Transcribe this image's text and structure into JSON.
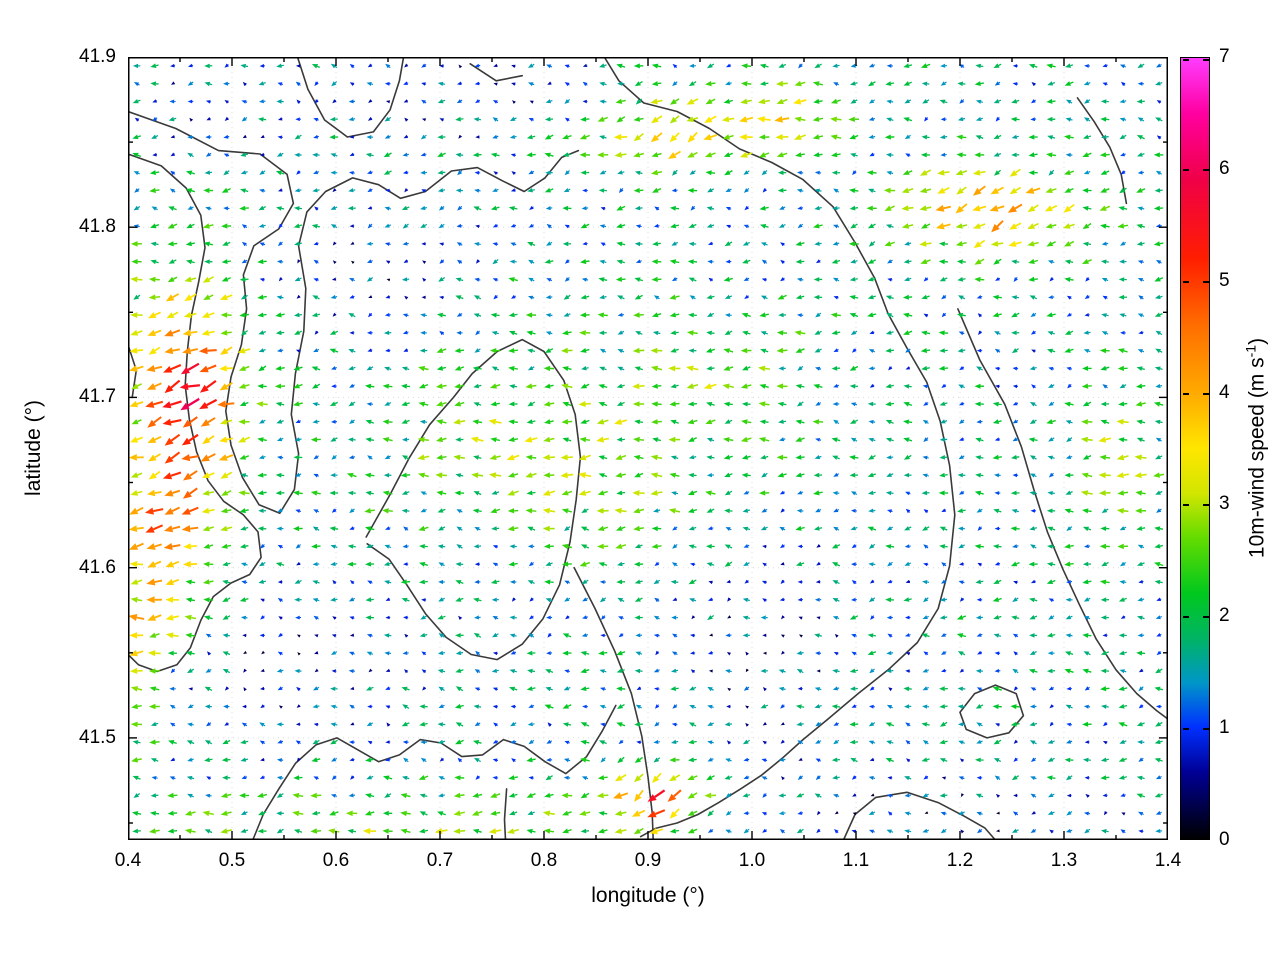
{
  "chart_data": {
    "type": "quiver",
    "title": "",
    "xlabel": "longitude (°)",
    "ylabel": "latitude (°)",
    "xlim": [
      0.4,
      1.4
    ],
    "ylim": [
      41.44,
      41.9
    ],
    "x_ticks": {
      "values": [
        0.4,
        0.5,
        0.6,
        0.7,
        0.8,
        0.9,
        1.0,
        1.1,
        1.2,
        1.3,
        1.4
      ],
      "labels": [
        "0.4",
        "0.5",
        "0.6",
        "0.7",
        "0.8",
        "0.9",
        "1.0",
        "1.1",
        "1.2",
        "1.3",
        "1.4"
      ]
    },
    "y_ticks": {
      "values": [
        41.5,
        41.6,
        41.7,
        41.8,
        41.9
      ],
      "labels": [
        "41.5",
        "41.6",
        "41.7",
        "41.8",
        "41.9"
      ]
    },
    "grid": {
      "show": true,
      "style": "dotted",
      "color": "#dcdcdc"
    },
    "colorbar": {
      "label_prefix": "10m-wind speed (m s",
      "label_sup": "-1",
      "label_suffix": ")",
      "min": 0,
      "max": 7,
      "tick_values": [
        0,
        1,
        2,
        3,
        4,
        5,
        6,
        7
      ],
      "tick_labels": [
        "0",
        "1",
        "2",
        "3",
        "4",
        "5",
        "6",
        "7"
      ],
      "stops": [
        [
          0.0,
          "#000000"
        ],
        [
          0.6,
          "#000096"
        ],
        [
          1.0,
          "#0030ff"
        ],
        [
          1.4,
          "#0096c8"
        ],
        [
          1.8,
          "#00b464"
        ],
        [
          2.2,
          "#00c81e"
        ],
        [
          2.7,
          "#64dc00"
        ],
        [
          3.1,
          "#d2e600"
        ],
        [
          3.5,
          "#ffe600"
        ],
        [
          4.0,
          "#ffaa00"
        ],
        [
          4.6,
          "#ff6e00"
        ],
        [
          5.2,
          "#ff1e00"
        ],
        [
          5.9,
          "#f00046"
        ],
        [
          6.5,
          "#ff00a0"
        ],
        [
          7.0,
          "#ff3cff"
        ]
      ]
    },
    "vector_field": {
      "nx": 58,
      "ny": 44,
      "seed": 42,
      "base_speed": 1.5,
      "speed_noise": 0.75,
      "base_direction_deg": 183,
      "direction_noise_deg": 18,
      "low_speed_extra_noise_deg": 50,
      "speed_blobs": [
        {
          "c": [
            0.455,
            41.7
          ],
          "s": [
            0.055,
            0.075
          ],
          "a": 3.8
        },
        {
          "c": [
            0.42,
            41.615
          ],
          "s": [
            0.05,
            0.03
          ],
          "a": 2.4
        },
        {
          "c": [
            0.425,
            41.57
          ],
          "s": [
            0.055,
            0.025
          ],
          "a": 1.5
        },
        {
          "c": [
            0.402,
            41.53
          ],
          "s": [
            0.03,
            0.04
          ],
          "a": 1.4
        },
        {
          "c": [
            1.23,
            41.81
          ],
          "s": [
            0.1,
            0.026
          ],
          "a": 2.5
        },
        {
          "c": [
            0.93,
            41.855
          ],
          "s": [
            0.07,
            0.022
          ],
          "a": 2.2
        },
        {
          "c": [
            0.8,
            41.665
          ],
          "s": [
            0.16,
            0.07
          ],
          "a": 1.3
        },
        {
          "c": [
            0.98,
            41.72
          ],
          "s": [
            0.09,
            0.05
          ],
          "a": 0.9
        },
        {
          "c": [
            0.7,
            41.447
          ],
          "s": [
            0.3,
            0.022
          ],
          "a": 1.2
        },
        {
          "c": [
            0.91,
            41.465
          ],
          "s": [
            0.045,
            0.02
          ],
          "a": 3.4
        },
        {
          "c": [
            1.35,
            41.66
          ],
          "s": [
            0.05,
            0.045
          ],
          "a": 1.2
        },
        {
          "c": [
            1.04,
            41.862
          ],
          "s": [
            0.055,
            0.025
          ],
          "a": 1.5
        },
        {
          "c": [
            0.63,
            41.775
          ],
          "s": [
            0.09,
            0.045
          ],
          "a": -0.7
        },
        {
          "c": [
            0.56,
            41.545
          ],
          "s": [
            0.11,
            0.045
          ],
          "a": -0.8
        },
        {
          "c": [
            1.0,
            41.555
          ],
          "s": [
            0.1,
            0.055
          ],
          "a": -0.7
        },
        {
          "c": [
            0.74,
            41.6
          ],
          "s": [
            0.06,
            0.04
          ],
          "a": -0.6
        },
        {
          "c": [
            1.12,
            41.448
          ],
          "s": [
            0.24,
            0.028
          ],
          "a": -0.9
        },
        {
          "c": [
            0.73,
            41.882
          ],
          "s": [
            0.1,
            0.028
          ],
          "a": -0.6
        },
        {
          "c": [
            0.99,
            41.775
          ],
          "s": [
            0.05,
            0.038
          ],
          "a": -0.5
        },
        {
          "c": [
            0.48,
            41.87
          ],
          "s": [
            0.06,
            0.03
          ],
          "a": -0.5
        }
      ],
      "direction_blobs": [
        {
          "c": [
            0.46,
            41.69
          ],
          "s": [
            0.07,
            0.09
          ],
          "d": 22
        },
        {
          "c": [
            1.23,
            41.81
          ],
          "s": [
            0.1,
            0.03
          ],
          "d": 30
        },
        {
          "c": [
            0.93,
            41.855
          ],
          "s": [
            0.07,
            0.025
          ],
          "d": 30
        },
        {
          "c": [
            0.91,
            41.465
          ],
          "s": [
            0.05,
            0.025
          ],
          "d": 42
        },
        {
          "c": [
            0.62,
            41.56
          ],
          "s": [
            0.15,
            0.06
          ],
          "d": -10
        }
      ]
    },
    "contours": {
      "color": "#3a3a3a",
      "width": 1.6,
      "paths": [
        [
          [
            0.4,
            41.868
          ],
          [
            0.446,
            41.858
          ],
          [
            0.487,
            41.845
          ],
          [
            0.527,
            41.843
          ],
          [
            0.553,
            41.831
          ],
          [
            0.559,
            41.814
          ],
          [
            0.545,
            41.799
          ],
          [
            0.521,
            41.789
          ],
          [
            0.511,
            41.772
          ],
          [
            0.514,
            41.752
          ],
          [
            0.509,
            41.731
          ],
          [
            0.499,
            41.712
          ],
          [
            0.494,
            41.692
          ],
          [
            0.499,
            41.672
          ],
          [
            0.51,
            41.653
          ],
          [
            0.526,
            41.637
          ],
          [
            0.546,
            41.632
          ],
          [
            0.56,
            41.646
          ],
          [
            0.564,
            41.667
          ],
          [
            0.557,
            41.69
          ],
          [
            0.561,
            41.714
          ],
          [
            0.569,
            41.739
          ],
          [
            0.571,
            41.764
          ],
          [
            0.564,
            41.789
          ],
          [
            0.572,
            41.809
          ],
          [
            0.59,
            41.821
          ],
          [
            0.616,
            41.829
          ],
          [
            0.641,
            41.825
          ],
          [
            0.662,
            41.817
          ],
          [
            0.686,
            41.821
          ],
          [
            0.711,
            41.833
          ],
          [
            0.736,
            41.835
          ],
          [
            0.761,
            41.827
          ],
          [
            0.781,
            41.821
          ],
          [
            0.801,
            41.829
          ],
          [
            0.817,
            41.841
          ],
          [
            0.833,
            41.845
          ]
        ],
        [
          [
            0.4,
            41.843
          ],
          [
            0.432,
            41.836
          ],
          [
            0.456,
            41.823
          ],
          [
            0.47,
            41.807
          ],
          [
            0.474,
            41.788
          ],
          [
            0.468,
            41.768
          ],
          [
            0.461,
            41.748
          ],
          [
            0.457,
            41.727
          ],
          [
            0.455,
            41.707
          ],
          [
            0.459,
            41.687
          ],
          [
            0.466,
            41.668
          ],
          [
            0.477,
            41.651
          ],
          [
            0.492,
            41.639
          ],
          [
            0.511,
            41.631
          ],
          [
            0.525,
            41.621
          ],
          [
            0.528,
            41.606
          ],
          [
            0.517,
            41.596
          ],
          [
            0.499,
            41.591
          ],
          [
            0.482,
            41.583
          ],
          [
            0.47,
            41.569
          ],
          [
            0.46,
            41.553
          ],
          [
            0.447,
            41.543
          ],
          [
            0.428,
            41.539
          ],
          [
            0.41,
            41.543
          ],
          [
            0.4,
            41.549
          ]
        ],
        [
          [
            0.563,
            41.9
          ],
          [
            0.573,
            41.881
          ],
          [
            0.589,
            41.863
          ],
          [
            0.611,
            41.853
          ],
          [
            0.636,
            41.856
          ],
          [
            0.652,
            41.869
          ],
          [
            0.661,
            41.886
          ],
          [
            0.665,
            41.9
          ]
        ],
        [
          [
            0.858,
            41.9
          ],
          [
            0.872,
            41.886
          ],
          [
            0.896,
            41.873
          ],
          [
            0.928,
            41.868
          ],
          [
            0.959,
            41.858
          ],
          [
            0.988,
            41.846
          ],
          [
            1.019,
            41.838
          ],
          [
            1.049,
            41.828
          ],
          [
            1.078,
            41.812
          ],
          [
            1.099,
            41.791
          ],
          [
            1.118,
            41.77
          ],
          [
            1.131,
            41.749
          ],
          [
            1.149,
            41.729
          ],
          [
            1.168,
            41.709
          ],
          [
            1.181,
            41.686
          ],
          [
            1.19,
            41.66
          ],
          [
            1.195,
            41.631
          ],
          [
            1.19,
            41.601
          ],
          [
            1.179,
            41.576
          ],
          [
            1.159,
            41.556
          ],
          [
            1.131,
            41.54
          ],
          [
            1.102,
            41.526
          ],
          [
            1.073,
            41.511
          ],
          [
            1.049,
            41.499
          ],
          [
            1.029,
            41.488
          ],
          [
            1.009,
            41.478
          ],
          [
            0.989,
            41.47
          ],
          [
            0.968,
            41.462
          ],
          [
            0.948,
            41.455
          ],
          [
            0.928,
            41.45
          ],
          [
            0.908,
            41.447
          ],
          [
            0.893,
            41.442
          ]
        ],
        [
          [
            0.629,
            41.618
          ],
          [
            0.652,
            41.643
          ],
          [
            0.67,
            41.664
          ],
          [
            0.69,
            41.684
          ],
          [
            0.713,
            41.7
          ],
          [
            0.731,
            41.714
          ],
          [
            0.755,
            41.727
          ],
          [
            0.779,
            41.734
          ],
          [
            0.8,
            41.727
          ],
          [
            0.819,
            41.71
          ],
          [
            0.83,
            41.69
          ],
          [
            0.835,
            41.665
          ],
          [
            0.831,
            41.64
          ],
          [
            0.825,
            41.615
          ],
          [
            0.815,
            41.59
          ],
          [
            0.799,
            41.57
          ],
          [
            0.779,
            41.555
          ],
          [
            0.755,
            41.546
          ],
          [
            0.73,
            41.549
          ],
          [
            0.706,
            41.559
          ],
          [
            0.686,
            41.573
          ],
          [
            0.668,
            41.59
          ],
          [
            0.651,
            41.605
          ],
          [
            0.63,
            41.614
          ]
        ],
        [
          [
            0.829,
            41.6
          ],
          [
            0.849,
            41.576
          ],
          [
            0.868,
            41.551
          ],
          [
            0.884,
            41.526
          ],
          [
            0.894,
            41.501
          ],
          [
            0.9,
            41.477
          ],
          [
            0.904,
            41.456
          ],
          [
            0.905,
            41.44
          ]
        ],
        [
          [
            0.52,
            41.44
          ],
          [
            0.53,
            41.455
          ],
          [
            0.545,
            41.47
          ],
          [
            0.561,
            41.485
          ],
          [
            0.581,
            41.496
          ],
          [
            0.601,
            41.5
          ],
          [
            0.621,
            41.493
          ],
          [
            0.641,
            41.486
          ],
          [
            0.661,
            41.49
          ],
          [
            0.681,
            41.499
          ],
          [
            0.701,
            41.497
          ],
          [
            0.721,
            41.489
          ],
          [
            0.741,
            41.49
          ],
          [
            0.761,
            41.499
          ],
          [
            0.781,
            41.495
          ],
          [
            0.801,
            41.486
          ],
          [
            0.821,
            41.479
          ],
          [
            0.841,
            41.489
          ],
          [
            0.856,
            41.504
          ],
          [
            0.869,
            41.519
          ]
        ],
        [
          [
            1.198,
            41.752
          ],
          [
            1.219,
            41.722
          ],
          [
            1.243,
            41.696
          ],
          [
            1.259,
            41.671
          ],
          [
            1.271,
            41.646
          ],
          [
            1.284,
            41.621
          ],
          [
            1.299,
            41.599
          ],
          [
            1.315,
            41.578
          ],
          [
            1.331,
            41.558
          ],
          [
            1.35,
            41.54
          ],
          [
            1.37,
            41.526
          ],
          [
            1.389,
            41.516
          ],
          [
            1.4,
            41.511
          ]
        ],
        [
          [
            1.2,
            41.515
          ],
          [
            1.214,
            41.526
          ],
          [
            1.234,
            41.531
          ],
          [
            1.254,
            41.526
          ],
          [
            1.261,
            41.513
          ],
          [
            1.247,
            41.503
          ],
          [
            1.226,
            41.5
          ],
          [
            1.206,
            41.505
          ],
          [
            1.2,
            41.515
          ]
        ],
        [
          [
            1.088,
            41.44
          ],
          [
            1.099,
            41.455
          ],
          [
            1.119,
            41.465
          ],
          [
            1.149,
            41.468
          ],
          [
            1.179,
            41.462
          ],
          [
            1.204,
            41.454
          ],
          [
            1.224,
            41.447
          ],
          [
            1.234,
            41.44
          ]
        ],
        [
          [
            1.313,
            41.876
          ],
          [
            1.329,
            41.862
          ],
          [
            1.344,
            41.847
          ],
          [
            1.355,
            41.831
          ],
          [
            1.36,
            41.814
          ]
        ],
        [
          [
            0.729,
            41.896
          ],
          [
            0.754,
            41.886
          ],
          [
            0.779,
            41.889
          ]
        ],
        [
          [
            0.4,
            41.731
          ],
          [
            0.408,
            41.716
          ],
          [
            0.404,
            41.7
          ]
        ],
        [
          [
            0.764,
            41.47
          ],
          [
            0.762,
            41.452
          ],
          [
            0.763,
            41.44
          ]
        ]
      ]
    }
  }
}
